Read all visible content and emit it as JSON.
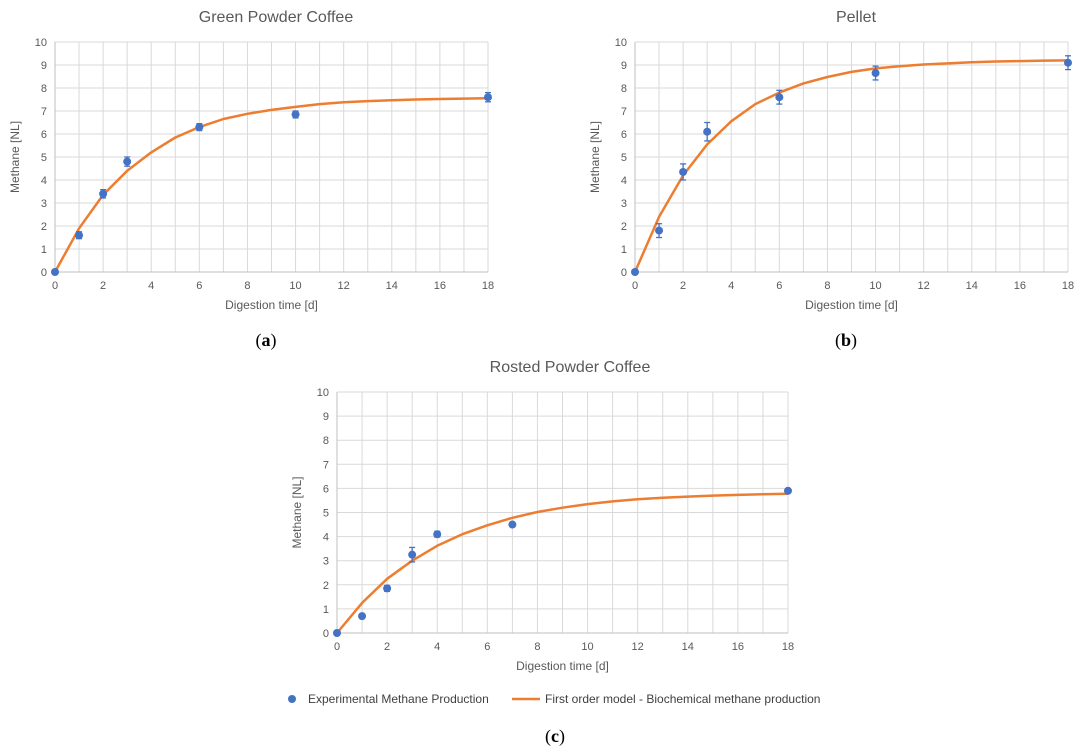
{
  "colors": {
    "points": "#4472C4",
    "model": "#ED7D31",
    "grid": "#D9D9D9",
    "axis": "#BFBFBF"
  },
  "legend": {
    "points_label": "Experimental Methane Production",
    "model_label": "First order model - Biochemical methane production"
  },
  "chart_data": [
    {
      "panel": "a",
      "type": "scatter",
      "title": "Green Powder Coffee",
      "xlabel": "Digestion time [d]",
      "ylabel": "Methane [NL]",
      "xlim": [
        0,
        18
      ],
      "ylim": [
        0,
        10
      ],
      "xticks": [
        0,
        2,
        4,
        6,
        8,
        10,
        12,
        14,
        16,
        18
      ],
      "yticks": [
        0,
        1,
        2,
        3,
        4,
        5,
        6,
        7,
        8,
        9,
        10
      ],
      "grid": true,
      "series": [
        {
          "name": "Experimental Methane Production",
          "type": "scatter",
          "x": [
            0,
            1,
            2,
            3,
            6,
            10,
            18
          ],
          "y": [
            0,
            1.6,
            3.4,
            4.8,
            6.3,
            6.85,
            7.6
          ],
          "err": [
            0,
            0.15,
            0.18,
            0.2,
            0.15,
            0.15,
            0.2
          ]
        },
        {
          "name": "First order model - Biochemical methane production",
          "type": "line",
          "x": [
            0,
            1,
            2,
            3,
            4,
            5,
            6,
            7,
            8,
            9,
            10,
            11,
            12,
            13,
            14,
            15,
            16,
            17,
            18
          ],
          "y": [
            0,
            1.9,
            3.35,
            4.4,
            5.2,
            5.85,
            6.3,
            6.65,
            6.88,
            7.05,
            7.18,
            7.3,
            7.38,
            7.43,
            7.47,
            7.5,
            7.52,
            7.54,
            7.55
          ]
        }
      ]
    },
    {
      "panel": "b",
      "type": "scatter",
      "title": "Pellet",
      "xlabel": "Digestion time [d]",
      "ylabel": "Methane [NL]",
      "xlim": [
        0,
        18
      ],
      "ylim": [
        0,
        10
      ],
      "xticks": [
        0,
        2,
        4,
        6,
        8,
        10,
        12,
        14,
        16,
        18
      ],
      "yticks": [
        0,
        1,
        2,
        3,
        4,
        5,
        6,
        7,
        8,
        9,
        10
      ],
      "grid": true,
      "series": [
        {
          "name": "Experimental Methane Production",
          "type": "scatter",
          "x": [
            0,
            1,
            2,
            3,
            6,
            10,
            18
          ],
          "y": [
            0,
            1.8,
            4.35,
            6.1,
            7.6,
            8.65,
            9.1
          ],
          "err": [
            0,
            0.3,
            0.35,
            0.4,
            0.3,
            0.3,
            0.3
          ]
        },
        {
          "name": "First order model - Biochemical methane production",
          "type": "line",
          "x": [
            0,
            1,
            2,
            3,
            4,
            5,
            6,
            7,
            8,
            9,
            10,
            11,
            12,
            13,
            14,
            15,
            16,
            17,
            18
          ],
          "y": [
            0,
            2.4,
            4.2,
            5.55,
            6.55,
            7.3,
            7.8,
            8.2,
            8.48,
            8.7,
            8.85,
            8.95,
            9.02,
            9.07,
            9.12,
            9.15,
            9.17,
            9.19,
            9.2
          ]
        }
      ]
    },
    {
      "panel": "c",
      "type": "scatter",
      "title": "Rosted Powder Coffee",
      "xlabel": "Digestion time [d]",
      "ylabel": "Methane [NL]",
      "xlim": [
        0,
        18
      ],
      "ylim": [
        0,
        10
      ],
      "xticks": [
        0,
        2,
        4,
        6,
        8,
        10,
        12,
        14,
        16,
        18
      ],
      "yticks": [
        0,
        1,
        2,
        3,
        4,
        5,
        6,
        7,
        8,
        9,
        10
      ],
      "grid": true,
      "series": [
        {
          "name": "Experimental Methane Production",
          "type": "scatter",
          "x": [
            0,
            1,
            2,
            3,
            4,
            7,
            18
          ],
          "y": [
            0,
            0.7,
            1.85,
            3.25,
            4.1,
            4.5,
            5.9
          ],
          "err": [
            0,
            0.05,
            0.12,
            0.3,
            0.12,
            0.08,
            0.05
          ]
        },
        {
          "name": "First order model - Biochemical methane production",
          "type": "line",
          "x": [
            0,
            1,
            2,
            3,
            4,
            5,
            6,
            7,
            8,
            9,
            10,
            11,
            12,
            13,
            14,
            15,
            16,
            17,
            18
          ],
          "y": [
            0,
            1.25,
            2.25,
            3.0,
            3.62,
            4.1,
            4.47,
            4.78,
            5.02,
            5.2,
            5.35,
            5.46,
            5.55,
            5.61,
            5.66,
            5.7,
            5.73,
            5.76,
            5.78
          ]
        }
      ]
    }
  ],
  "panel_labels": [
    "(a)",
    "(b)",
    "(c)"
  ]
}
